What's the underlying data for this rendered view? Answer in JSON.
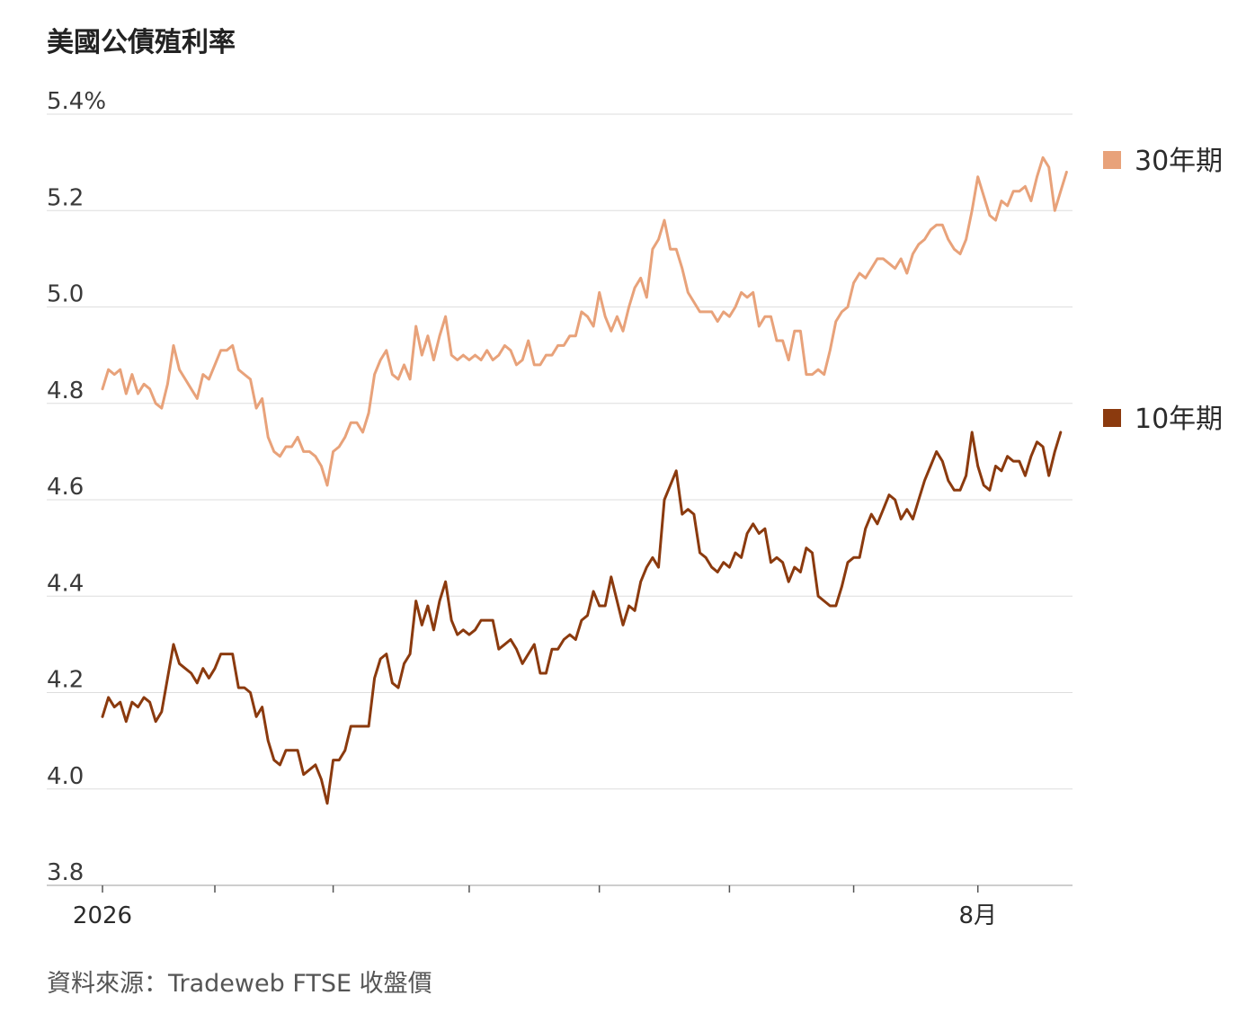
{
  "title": "美國公債殖利率",
  "source": "資料來源：Tradeweb FTSE 收盤價",
  "colors": {
    "series_30y": "#E8A27A",
    "series_10y": "#8B3A0E",
    "grid": "#dedede",
    "axis": "#bdbdbd"
  },
  "chart_data": {
    "type": "line",
    "ylim": [
      3.8,
      5.4
    ],
    "yticks": [
      {
        "value": 5.4,
        "label": "5.4%"
      },
      {
        "value": 5.2,
        "label": "5.2"
      },
      {
        "value": 5.0,
        "label": "5.0"
      },
      {
        "value": 4.8,
        "label": "4.8"
      },
      {
        "value": 4.6,
        "label": "4.6"
      },
      {
        "value": 4.4,
        "label": "4.4"
      },
      {
        "value": 4.2,
        "label": "4.2"
      },
      {
        "value": 4.0,
        "label": "4.0"
      },
      {
        "value": 3.8,
        "label": "3.8"
      }
    ],
    "xlim": [
      0,
      164
    ],
    "xticks": [
      {
        "index": 0,
        "label": "2026"
      },
      {
        "index": 19,
        "label": ""
      },
      {
        "index": 39,
        "label": ""
      },
      {
        "index": 62,
        "label": ""
      },
      {
        "index": 84,
        "label": ""
      },
      {
        "index": 106,
        "label": ""
      },
      {
        "index": 127,
        "label": ""
      },
      {
        "index": 148,
        "label": "8月"
      }
    ],
    "grid": true,
    "legend_position": "right",
    "series": [
      {
        "name": "30年期",
        "color": "#E8A27A",
        "values": [
          4.83,
          4.87,
          4.86,
          4.87,
          4.82,
          4.86,
          4.82,
          4.84,
          4.83,
          4.8,
          4.79,
          4.84,
          4.92,
          4.87,
          4.85,
          4.83,
          4.81,
          4.86,
          4.85,
          4.88,
          4.91,
          4.91,
          4.92,
          4.87,
          4.86,
          4.85,
          4.79,
          4.81,
          4.73,
          4.7,
          4.69,
          4.71,
          4.71,
          4.73,
          4.7,
          4.7,
          4.69,
          4.67,
          4.63,
          4.7,
          4.71,
          4.73,
          4.76,
          4.76,
          4.74,
          4.78,
          4.86,
          4.89,
          4.91,
          4.86,
          4.85,
          4.88,
          4.85,
          4.96,
          4.9,
          4.94,
          4.89,
          4.94,
          4.98,
          4.9,
          4.89,
          4.9,
          4.89,
          4.9,
          4.89,
          4.91,
          4.89,
          4.9,
          4.92,
          4.91,
          4.88,
          4.89,
          4.93,
          4.88,
          4.88,
          4.9,
          4.9,
          4.92,
          4.92,
          4.94,
          4.94,
          4.99,
          4.98,
          4.96,
          5.03,
          4.98,
          4.95,
          4.98,
          4.95,
          5.0,
          5.04,
          5.06,
          5.02,
          5.12,
          5.14,
          5.18,
          5.12,
          5.12,
          5.08,
          5.03,
          5.01,
          4.99,
          4.99,
          4.99,
          4.97,
          4.99,
          4.98,
          5.0,
          5.03,
          5.02,
          5.03,
          4.96,
          4.98,
          4.98,
          4.93,
          4.93,
          4.89,
          4.95,
          4.95,
          4.86,
          4.86,
          4.87,
          4.86,
          4.91,
          4.97,
          4.99,
          5.0,
          5.05,
          5.07,
          5.06,
          5.08,
          5.1,
          5.1,
          5.09,
          5.08,
          5.1,
          5.07,
          5.11,
          5.13,
          5.14,
          5.16,
          5.17,
          5.17,
          5.14,
          5.12,
          5.11,
          5.14,
          5.2,
          5.27,
          5.23,
          5.19,
          5.18,
          5.22,
          5.21,
          5.24,
          5.24,
          5.25,
          5.22,
          5.27,
          5.31,
          5.29,
          5.2,
          5.24,
          5.28
        ]
      },
      {
        "name": "10年期",
        "color": "#8B3A0E",
        "values": [
          4.15,
          4.19,
          4.17,
          4.18,
          4.14,
          4.18,
          4.17,
          4.19,
          4.18,
          4.14,
          4.16,
          4.23,
          4.3,
          4.26,
          4.25,
          4.24,
          4.22,
          4.25,
          4.23,
          4.25,
          4.28,
          4.28,
          4.28,
          4.21,
          4.21,
          4.2,
          4.15,
          4.17,
          4.1,
          4.06,
          4.05,
          4.08,
          4.08,
          4.08,
          4.03,
          4.04,
          4.05,
          4.02,
          3.97,
          4.06,
          4.06,
          4.08,
          4.13,
          4.13,
          4.13,
          4.13,
          4.23,
          4.27,
          4.28,
          4.22,
          4.21,
          4.26,
          4.28,
          4.39,
          4.34,
          4.38,
          4.33,
          4.39,
          4.43,
          4.35,
          4.32,
          4.33,
          4.32,
          4.33,
          4.35,
          4.35,
          4.35,
          4.29,
          4.3,
          4.31,
          4.29,
          4.26,
          4.28,
          4.3,
          4.24,
          4.24,
          4.29,
          4.29,
          4.31,
          4.32,
          4.31,
          4.35,
          4.36,
          4.41,
          4.38,
          4.38,
          4.44,
          4.39,
          4.34,
          4.38,
          4.37,
          4.43,
          4.46,
          4.48,
          4.46,
          4.6,
          4.63,
          4.66,
          4.57,
          4.58,
          4.57,
          4.49,
          4.48,
          4.46,
          4.45,
          4.47,
          4.46,
          4.49,
          4.48,
          4.53,
          4.55,
          4.53,
          4.54,
          4.47,
          4.48,
          4.47,
          4.43,
          4.46,
          4.45,
          4.5,
          4.49,
          4.4,
          4.39,
          4.38,
          4.38,
          4.42,
          4.47,
          4.48,
          4.48,
          4.54,
          4.57,
          4.55,
          4.58,
          4.61,
          4.6,
          4.56,
          4.58,
          4.56,
          4.6,
          4.64,
          4.67,
          4.7,
          4.68,
          4.64,
          4.62,
          4.62,
          4.65,
          4.74,
          4.67,
          4.63,
          4.62,
          4.67,
          4.66,
          4.69,
          4.68,
          4.68,
          4.65,
          4.69,
          4.72,
          4.71,
          4.65,
          4.7,
          4.74
        ]
      }
    ]
  }
}
